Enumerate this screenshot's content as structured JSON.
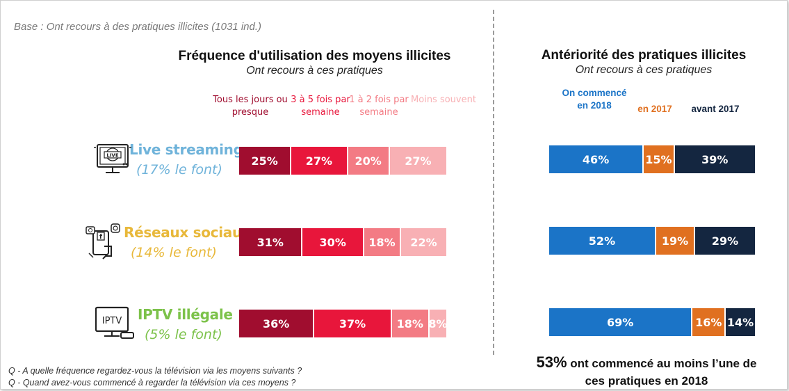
{
  "base_note": "Base : Ont recours à des pratiques illicites (1031 ind.)",
  "colors": {
    "freq": [
      "#a00d2f",
      "#e8163b",
      "#f37b84",
      "#f8b0b4"
    ],
    "ant": [
      "#1b74c7",
      "#e07020",
      "#142640"
    ],
    "live": "#6fb3da",
    "social": "#e8b83a",
    "iptv": "#7cc24a"
  },
  "rows": [
    {
      "name": "Live streaming",
      "share": "(17% le font)",
      "icon": "live-tv-icon"
    },
    {
      "name": "Réseaux sociaux",
      "share": "(14% le font)",
      "icon": "social-phone-icon"
    },
    {
      "name": "IPTV illégale",
      "share": "(5% le font)",
      "icon": "iptv-tv-icon"
    }
  ],
  "chart_data": [
    {
      "type": "bar",
      "stacked": true,
      "orientation": "horizontal",
      "title": "Fréquence d'utilisation des moyens illicites",
      "subtitle": "Ont recours à ces pratiques",
      "categories": [
        "Live streaming",
        "Réseaux sociaux",
        "IPTV illégale"
      ],
      "legend": [
        "Tous les jours ou presque",
        "3 à 5 fois par semaine",
        "1 à 2 fois par semaine",
        "Moins souvent"
      ],
      "legend_lines": [
        [
          "Tous les jours ou",
          "presque"
        ],
        [
          "3 à 5 fois par",
          "semaine"
        ],
        [
          "1 à 2 fois par",
          "semaine"
        ],
        [
          "Moins souvent"
        ]
      ],
      "series": [
        {
          "name": "Tous les jours ou presque",
          "values": [
            25,
            31,
            36
          ]
        },
        {
          "name": "3 à 5 fois par semaine",
          "values": [
            27,
            30,
            37
          ]
        },
        {
          "name": "1 à 2 fois par semaine",
          "values": [
            20,
            18,
            18
          ]
        },
        {
          "name": "Moins souvent",
          "values": [
            27,
            22,
            8
          ]
        }
      ],
      "unit": "%"
    },
    {
      "type": "bar",
      "stacked": true,
      "orientation": "horizontal",
      "title": "Antériorité des pratiques illicites",
      "subtitle": "Ont recours à ces pratiques",
      "categories": [
        "Live streaming",
        "Réseaux sociaux",
        "IPTV illégale"
      ],
      "legend": [
        "On commencé en 2018",
        "en 2017",
        "avant 2017"
      ],
      "legend_lines": [
        [
          "On commencé",
          "en 2018"
        ],
        [
          "en 2017"
        ],
        [
          "avant 2017"
        ]
      ],
      "series": [
        {
          "name": "On commencé en 2018",
          "values": [
            46,
            52,
            69
          ]
        },
        {
          "name": "en 2017",
          "values": [
            15,
            19,
            16
          ]
        },
        {
          "name": "avant 2017",
          "values": [
            39,
            29,
            14
          ]
        }
      ],
      "unit": "%"
    }
  ],
  "notes": [
    "Q -  A quelle fréquence regardez-vous la télévision via les moyens suivants ?",
    "Q - Quand avez-vous commencé à regarder la télévision via ces moyens ?"
  ],
  "conclusion": {
    "big": "53%",
    "line1": " ont commencé au moins l’une de",
    "line2": "ces pratiques en 2018"
  }
}
